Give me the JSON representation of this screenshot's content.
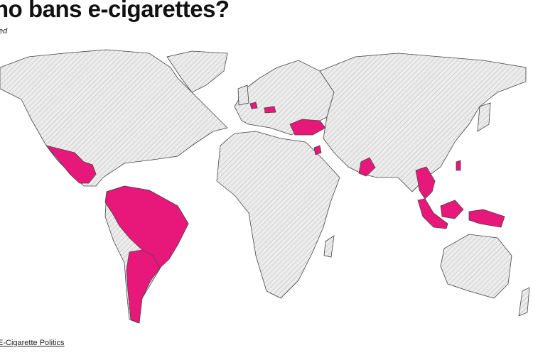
{
  "title": "ho bans e-cigarettes?",
  "subtitle": "ed",
  "source": "E-Cigarette Politics",
  "colors": {
    "banned": "#e8187a",
    "land": "#e6e6e6",
    "border": "#444444"
  },
  "banned_regions": [
    "Mexico",
    "Belgium",
    "Austria",
    "Turkey",
    "Jordan",
    "Oman",
    "Colombia",
    "Venezuela",
    "Suriname",
    "Brazil",
    "Uruguay",
    "Argentina",
    "Thailand",
    "Cambodia",
    "Malaysia",
    "Singapore",
    "Indonesia",
    "Brunei"
  ]
}
